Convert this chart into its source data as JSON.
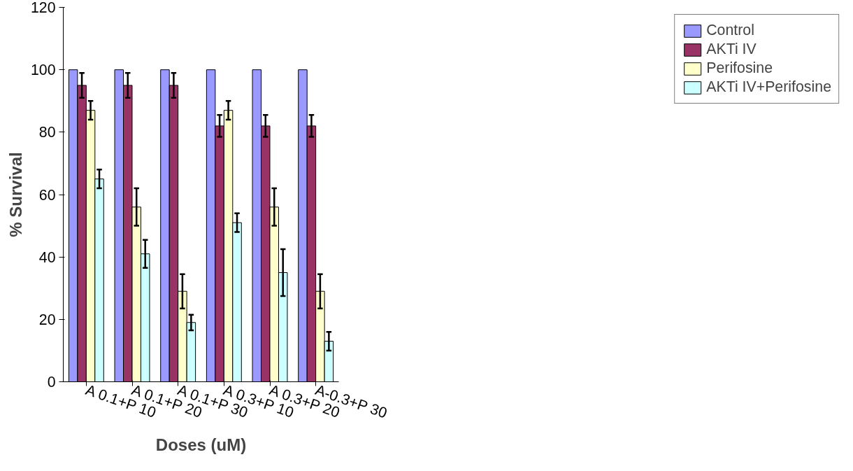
{
  "chart_data": {
    "type": "bar",
    "xlabel": "Doses (uM)",
    "ylabel": "% Survival",
    "categories": [
      "A 0.1+P 10",
      "A 0.1+P 20",
      "A 0.1+P 30",
      "A 0.3+P 10",
      "A 0.3+P 20",
      "A-0.3+P 30"
    ],
    "series": [
      {
        "name": "Control",
        "color": "#9999ff",
        "values": [
          100,
          100,
          100,
          100,
          100,
          100
        ]
      },
      {
        "name": "AKTi IV",
        "color": "#993366",
        "values": [
          95,
          95,
          95,
          82,
          82,
          82
        ],
        "errors": [
          4,
          4,
          4,
          3.5,
          3.5,
          3.5
        ]
      },
      {
        "name": "Perifosine",
        "color": "#ffffcc",
        "values": [
          87,
          56,
          29,
          87,
          56,
          29
        ],
        "errors": [
          3,
          6,
          5.5,
          3,
          6,
          5.5
        ]
      },
      {
        "name": "AKTi IV+Perifosine",
        "color": "#ccffff",
        "values": [
          65,
          41,
          19,
          51,
          35,
          13
        ],
        "errors": [
          3,
          4.5,
          2.5,
          3,
          7.5,
          3
        ]
      }
    ],
    "ylim": [
      0,
      120
    ],
    "yticks": [
      0,
      20,
      40,
      60,
      80,
      100,
      120
    ],
    "grid": false,
    "legend": "right"
  }
}
